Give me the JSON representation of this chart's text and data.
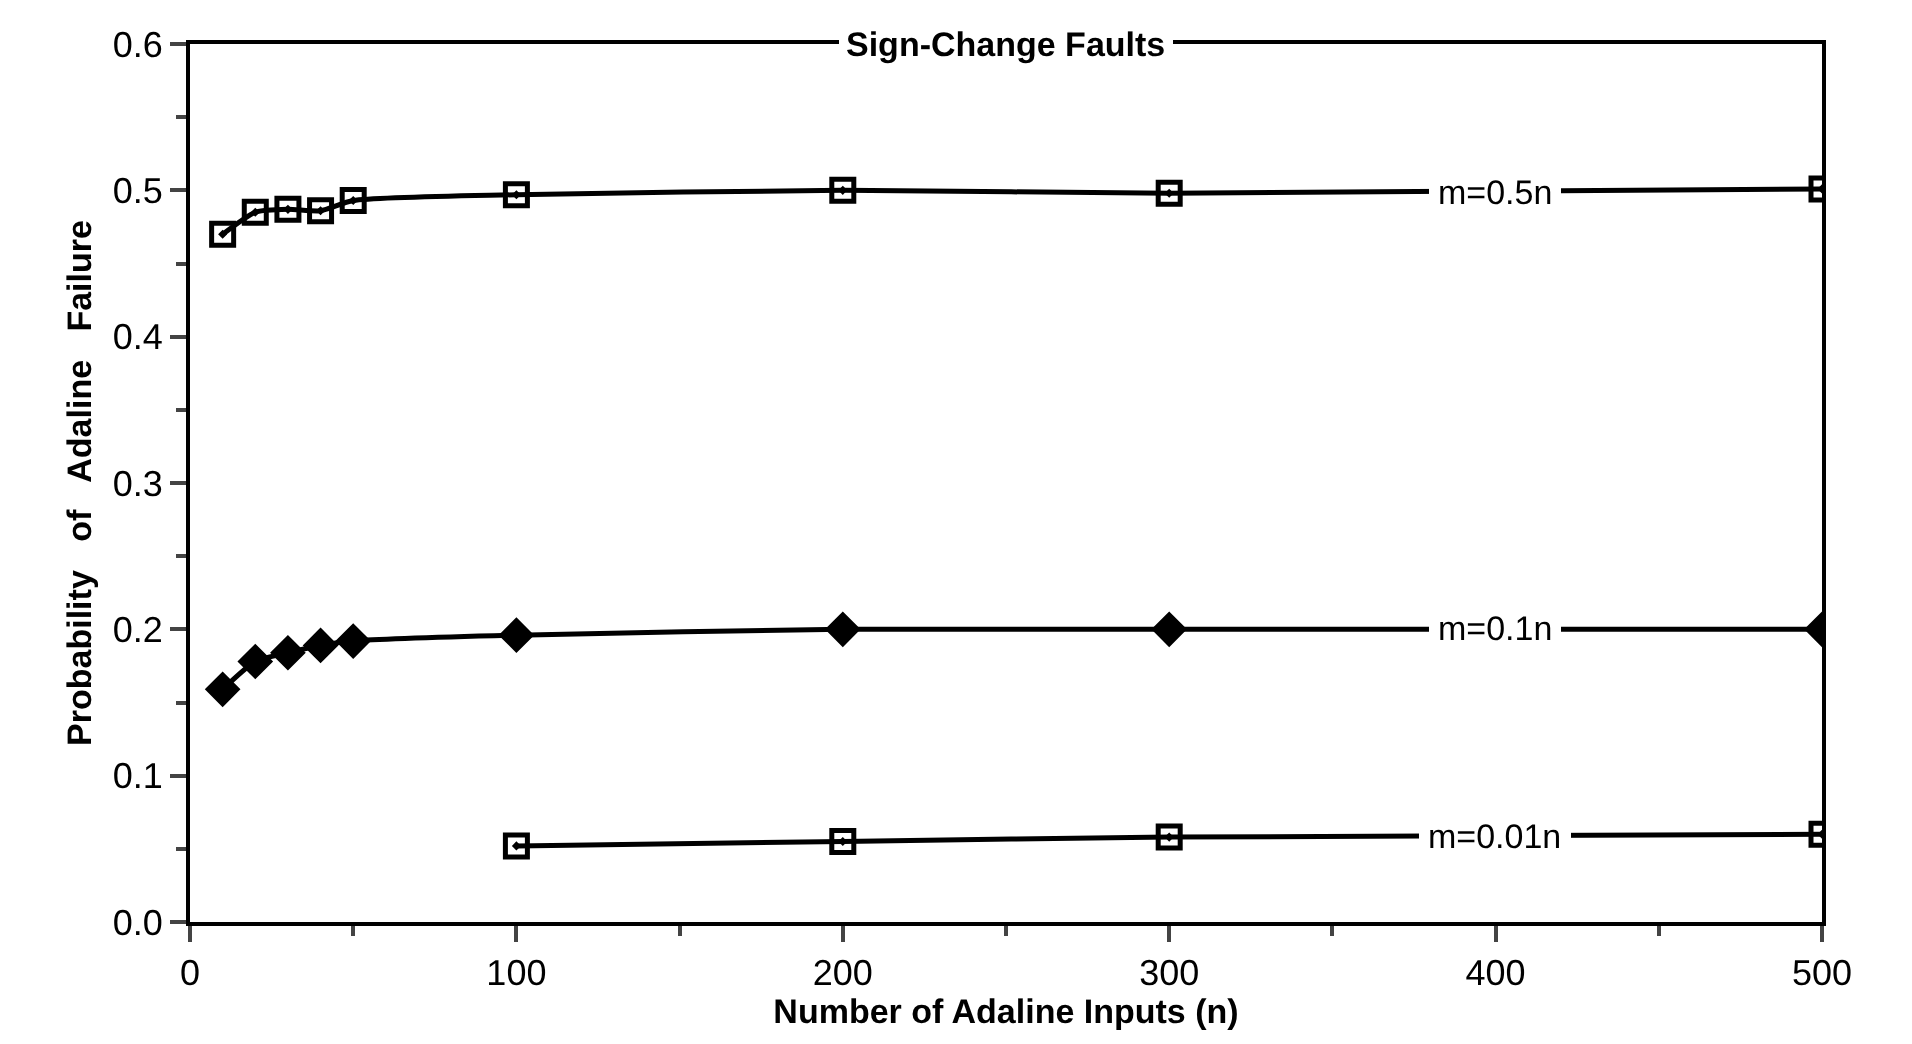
{
  "chart_data": {
    "type": "line",
    "title": "Sign-Change Faults",
    "xlabel": "Number of Adaline Inputs (n)",
    "ylabel": "Probability   of   Adaline   Failure",
    "x": [
      10,
      20,
      30,
      40,
      50,
      100,
      200,
      300,
      500
    ],
    "series": [
      {
        "name": "m=0.5n",
        "color": "#000000",
        "marker": "square",
        "values": [
          0.47,
          0.485,
          0.487,
          0.486,
          0.493,
          0.497,
          0.5,
          0.498,
          0.501
        ]
      },
      {
        "name": "m=0.1n",
        "color": "#000000",
        "marker": "diamond",
        "values": [
          0.159,
          0.178,
          0.184,
          0.189,
          0.192,
          0.196,
          0.2,
          0.2,
          0.2
        ]
      },
      {
        "name": "m=0.01n",
        "color": "#000000",
        "marker": "square",
        "values": [
          null,
          null,
          null,
          null,
          null,
          0.052,
          0.055,
          0.058,
          0.06
        ]
      }
    ],
    "xlim": [
      0,
      500
    ],
    "xticks": [
      0,
      100,
      200,
      300,
      400,
      500
    ],
    "ylim": [
      0,
      0.6
    ],
    "yticks": [
      {
        "value": 0,
        "label": "0.0"
      },
      0.1,
      0.2,
      0.3,
      0.4,
      0.5,
      0.6
    ],
    "legend": false,
    "line_style": "solid"
  }
}
